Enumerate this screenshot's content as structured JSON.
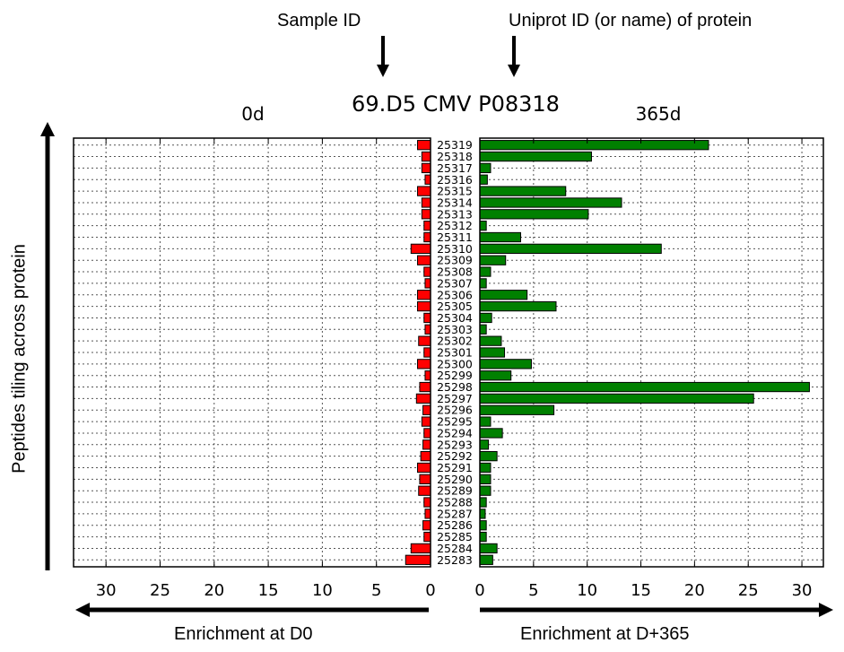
{
  "annotations": {
    "sample_id_label": "Sample ID",
    "uniprot_label": "Uniprot ID (or name) of protein",
    "y_axis_label": "Peptides tiling across protein",
    "x_left_label": "Enrichment at D0",
    "x_right_label": "Enrichment at D+365"
  },
  "chart_data": {
    "type": "bar",
    "title": "69.D5 CMV P08318",
    "orientation": "horizontal-mirrored",
    "categories": [
      "25319",
      "25318",
      "25317",
      "25316",
      "25315",
      "25314",
      "25313",
      "25312",
      "25311",
      "25310",
      "25309",
      "25308",
      "25307",
      "25306",
      "25305",
      "25304",
      "25303",
      "25302",
      "25301",
      "25300",
      "25299",
      "25298",
      "25297",
      "25296",
      "25295",
      "25294",
      "25293",
      "25292",
      "25291",
      "25290",
      "25289",
      "25288",
      "25287",
      "25286",
      "25285",
      "25284",
      "25283"
    ],
    "series": [
      {
        "name": "0d",
        "color": "#ff0000",
        "xlim": [
          33,
          0
        ],
        "values": [
          1.2,
          0.8,
          0.8,
          0.5,
          1.2,
          0.8,
          0.8,
          0.6,
          0.6,
          1.8,
          1.2,
          0.6,
          0.5,
          1.2,
          1.2,
          0.6,
          0.5,
          1.1,
          0.6,
          1.2,
          0.5,
          1.0,
          1.3,
          0.7,
          0.8,
          0.6,
          0.7,
          0.9,
          1.2,
          1.0,
          1.1,
          0.6,
          0.5,
          0.7,
          0.6,
          1.8,
          2.3
        ]
      },
      {
        "name": "365d",
        "color": "#008000",
        "xlim": [
          0,
          32
        ],
        "values": [
          21.3,
          10.4,
          1.0,
          0.7,
          8.0,
          13.2,
          10.1,
          0.6,
          3.8,
          16.9,
          2.4,
          1.0,
          0.6,
          4.4,
          7.1,
          1.1,
          0.6,
          2.0,
          2.3,
          4.8,
          2.9,
          30.7,
          25.5,
          6.9,
          1.0,
          2.1,
          0.8,
          1.6,
          1.0,
          1.0,
          1.0,
          0.6,
          0.5,
          0.6,
          0.6,
          1.6,
          1.2
        ]
      }
    ],
    "xticks_left": [
      "30",
      "25",
      "20",
      "15",
      "10",
      "5",
      "0"
    ],
    "xticks_right": [
      "0",
      "5",
      "10",
      "15",
      "20",
      "25",
      "30"
    ],
    "grid": true
  }
}
